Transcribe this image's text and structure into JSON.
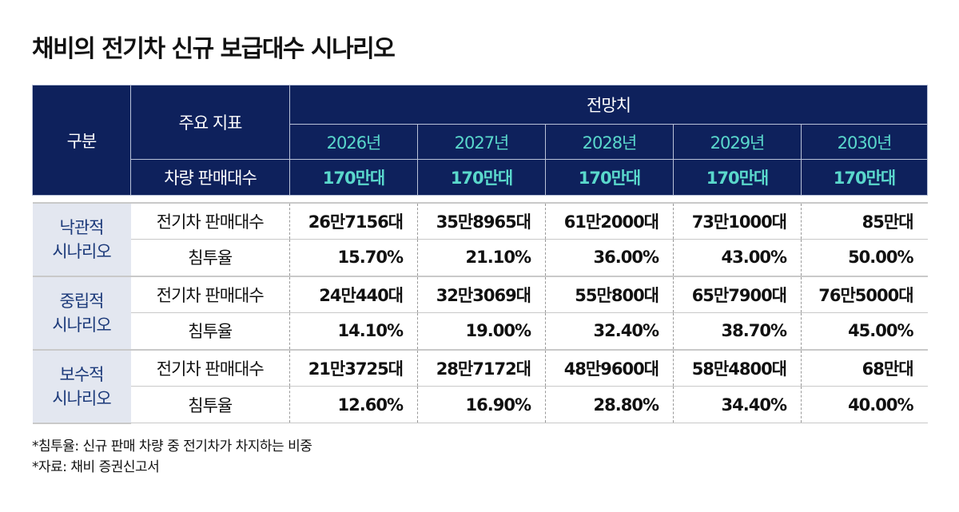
{
  "title": "채비의 전기차 신규 보급대수 시나리오",
  "chart_data": {
    "type": "table",
    "header": {
      "category": "구분",
      "indicator": "주요 지표",
      "forecast": "전망치",
      "years": [
        "2026년",
        "2027년",
        "2028년",
        "2029년",
        "2030년"
      ],
      "total_label": "차량 판매대수",
      "total_values": [
        "170만대",
        "170만대",
        "170만대",
        "170만대",
        "170만대"
      ]
    },
    "scenarios": [
      {
        "name": "낙관적",
        "name2": "시나리오",
        "sales_label": "전기차 판매대수",
        "sales": [
          "26만7156대",
          "35만8965대",
          "61만2000대",
          "73만1000대",
          "85만대"
        ],
        "rate_label": "침투율",
        "rate": [
          "15.70%",
          "21.10%",
          "36.00%",
          "43.00%",
          "50.00%"
        ]
      },
      {
        "name": "중립적",
        "name2": "시나리오",
        "sales_label": "전기차 판매대수",
        "sales": [
          "24만440대",
          "32만3069대",
          "55만800대",
          "65만7900대",
          "76만5000대"
        ],
        "rate_label": "침투율",
        "rate": [
          "14.10%",
          "19.00%",
          "32.40%",
          "38.70%",
          "45.00%"
        ]
      },
      {
        "name": "보수적",
        "name2": "시나리오",
        "sales_label": "전기차 판매대수",
        "sales": [
          "21만3725대",
          "28만7172대",
          "48만9600대",
          "58만4800대",
          "68만대"
        ],
        "rate_label": "침투율",
        "rate": [
          "12.60%",
          "16.90%",
          "28.80%",
          "34.40%",
          "40.00%"
        ]
      }
    ]
  },
  "notes": [
    "*침투율: 신규 판매 차량 중 전기차가 차지하는 비중",
    "*자료: 채비 증권신고서"
  ],
  "colors": {
    "header_bg": "#0e215c",
    "accent": "#5ad8cc",
    "scenario_bg": "#e3e7f0"
  }
}
